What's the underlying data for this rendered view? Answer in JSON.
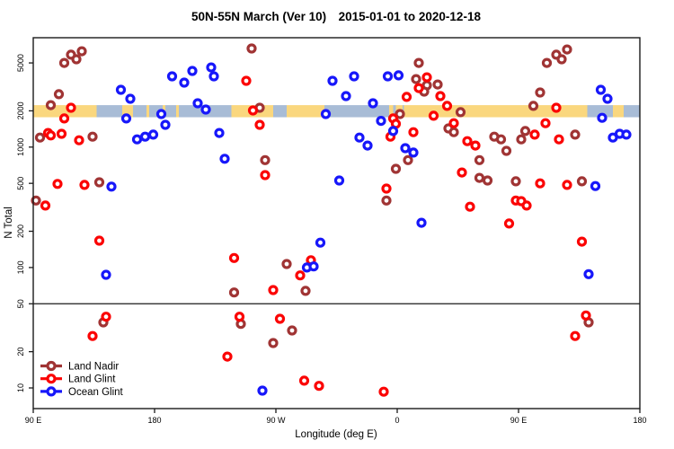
{
  "chart_data": {
    "type": "scatter",
    "title": "50N-55N March (Ver 10) 2015-01-01 to 2020-12-18",
    "xlabel": "Longitude (deg E)",
    "ylabel": "N Total",
    "x_axis": {
      "note": "longitude axis unwrapped eastward from 90E, degrees 0..450",
      "range_deg": [
        0,
        450
      ],
      "ticks": [
        {
          "deg": 0,
          "label": "90 E"
        },
        {
          "deg": 90,
          "label": "180"
        },
        {
          "deg": 180,
          "label": "90 W"
        },
        {
          "deg": 270,
          "label": "0"
        },
        {
          "deg": 360,
          "label": "90 E"
        },
        {
          "deg": 450,
          "label": "180"
        }
      ]
    },
    "y_axis": {
      "scale": "log",
      "range": [
        7,
        8000
      ],
      "ticks": [
        10,
        20,
        50,
        100,
        200,
        500,
        1000,
        2000,
        5000
      ]
    },
    "hline": 50,
    "frame_color": "#1a1a1a",
    "surface_band": {
      "top_n": 2230,
      "bottom_n": 1770,
      "land_color": "#FAD77E",
      "ocean_color": "#A8BCD6",
      "segments": [
        {
          "type": "land",
          "from": 0,
          "to": 47
        },
        {
          "type": "ocean",
          "from": 47,
          "to": 66
        },
        {
          "type": "land",
          "from": 66,
          "to": 74
        },
        {
          "type": "ocean",
          "from": 74,
          "to": 84
        },
        {
          "type": "land",
          "from": 84,
          "to": 86
        },
        {
          "type": "ocean",
          "from": 86,
          "to": 96
        },
        {
          "type": "land",
          "from": 96,
          "to": 98
        },
        {
          "type": "ocean",
          "from": 98,
          "to": 106
        },
        {
          "type": "land",
          "from": 106,
          "to": 108
        },
        {
          "type": "ocean",
          "from": 108,
          "to": 147
        },
        {
          "type": "land",
          "from": 147,
          "to": 178
        },
        {
          "type": "ocean",
          "from": 178,
          "to": 188
        },
        {
          "type": "land",
          "from": 188,
          "to": 216
        },
        {
          "type": "ocean",
          "from": 216,
          "to": 264
        },
        {
          "type": "land",
          "from": 264,
          "to": 267
        },
        {
          "type": "ocean",
          "from": 267,
          "to": 269
        },
        {
          "type": "land",
          "from": 269,
          "to": 274
        },
        {
          "type": "ocean",
          "from": 274,
          "to": 275
        },
        {
          "type": "land",
          "from": 275,
          "to": 411
        },
        {
          "type": "ocean",
          "from": 411,
          "to": 430
        },
        {
          "type": "land",
          "from": 430,
          "to": 438
        },
        {
          "type": "ocean",
          "from": 438,
          "to": 450
        }
      ]
    },
    "series": [
      {
        "name": "Land Nadir",
        "color": "#A03434",
        "points": [
          [
            23,
            5000
          ],
          [
            28,
            5850
          ],
          [
            36,
            6250
          ],
          [
            32,
            5360
          ],
          [
            19,
            2750
          ],
          [
            13,
            2230
          ],
          [
            162,
            6590
          ],
          [
            168,
            2120
          ],
          [
            5,
            1200
          ],
          [
            44,
            1220
          ],
          [
            49,
            510
          ],
          [
            2,
            360
          ],
          [
            172,
            780
          ],
          [
            188,
            107
          ],
          [
            202,
            64
          ],
          [
            149,
            62
          ],
          [
            52,
            35
          ],
          [
            178,
            23.6
          ],
          [
            192,
            30
          ],
          [
            154,
            34
          ],
          [
            286,
            5000
          ],
          [
            284,
            3670
          ],
          [
            292,
            3260
          ],
          [
            300,
            3310
          ],
          [
            290,
            2890
          ],
          [
            272,
            1880
          ],
          [
            317,
            1950
          ],
          [
            308,
            1430
          ],
          [
            312,
            1330
          ],
          [
            278,
            780
          ],
          [
            269,
            660
          ],
          [
            262,
            360
          ],
          [
            342,
            1220
          ],
          [
            347,
            1160
          ],
          [
            351,
            930
          ],
          [
            362,
            1160
          ],
          [
            365,
            1360
          ],
          [
            331,
            780
          ],
          [
            331,
            555
          ],
          [
            337,
            528
          ],
          [
            358,
            520
          ],
          [
            407,
            520
          ],
          [
            381,
            5000
          ],
          [
            388,
            5850
          ],
          [
            392,
            5360
          ],
          [
            396,
            6470
          ],
          [
            376,
            2840
          ],
          [
            371,
            2200
          ],
          [
            402,
            1270
          ],
          [
            412,
            35
          ]
        ]
      },
      {
        "name": "Land Glint",
        "color": "#FB0404",
        "points": [
          [
            28,
            2120
          ],
          [
            23,
            1730
          ],
          [
            11,
            1310
          ],
          [
            13,
            1250
          ],
          [
            21,
            1290
          ],
          [
            34,
            1140
          ],
          [
            158,
            3550
          ],
          [
            163,
            2015
          ],
          [
            168,
            1530
          ],
          [
            18,
            495
          ],
          [
            38,
            485
          ],
          [
            9,
            327
          ],
          [
            44,
            27
          ],
          [
            54,
            39
          ],
          [
            144,
            18.2
          ],
          [
            201,
            11.5
          ],
          [
            212,
            10.4
          ],
          [
            149,
            120
          ],
          [
            153,
            39
          ],
          [
            172,
            585
          ],
          [
            178,
            65
          ],
          [
            198,
            86
          ],
          [
            206,
            115
          ],
          [
            183,
            37.5
          ],
          [
            49,
            167
          ],
          [
            265,
            1220
          ],
          [
            292,
            3800
          ],
          [
            286,
            3090
          ],
          [
            302,
            2650
          ],
          [
            277,
            2610
          ],
          [
            307,
            2200
          ],
          [
            267,
            1730
          ],
          [
            269,
            1560
          ],
          [
            297,
            1820
          ],
          [
            312,
            1580
          ],
          [
            282,
            1330
          ],
          [
            262,
            452
          ],
          [
            322,
            1120
          ],
          [
            328,
            1030
          ],
          [
            318,
            615
          ],
          [
            376,
            500
          ],
          [
            396,
            485
          ],
          [
            358,
            360
          ],
          [
            362,
            356
          ],
          [
            366,
            327
          ],
          [
            324,
            320
          ],
          [
            353,
            232
          ],
          [
            407,
            164
          ],
          [
            410,
            40
          ],
          [
            388,
            2120
          ],
          [
            380,
            1580
          ],
          [
            390,
            1160
          ],
          [
            402,
            27
          ],
          [
            260,
            9.3
          ],
          [
            372,
            1270
          ]
        ]
      },
      {
        "name": "Ocean Glint",
        "color": "#1717FA",
        "points": [
          [
            65,
            2990
          ],
          [
            72,
            2520
          ],
          [
            69,
            1730
          ],
          [
            95,
            1880
          ],
          [
            98,
            1530
          ],
          [
            103,
            3870
          ],
          [
            112,
            3430
          ],
          [
            118,
            4290
          ],
          [
            132,
            4590
          ],
          [
            134,
            3870
          ],
          [
            122,
            2310
          ],
          [
            128,
            2050
          ],
          [
            138,
            1310
          ],
          [
            222,
            3550
          ],
          [
            232,
            2650
          ],
          [
            217,
            1880
          ],
          [
            77,
            1160
          ],
          [
            83,
            1220
          ],
          [
            89,
            1270
          ],
          [
            142,
            800
          ],
          [
            227,
            528
          ],
          [
            58,
            470
          ],
          [
            54,
            87
          ],
          [
            203,
            100
          ],
          [
            208,
            102
          ],
          [
            213,
            161
          ],
          [
            170,
            9.5
          ],
          [
            238,
            3870
          ],
          [
            263,
            3870
          ],
          [
            271,
            3940
          ],
          [
            252,
            2310
          ],
          [
            258,
            1650
          ],
          [
            267,
            1360
          ],
          [
            242,
            1200
          ],
          [
            248,
            1030
          ],
          [
            276,
            980
          ],
          [
            282,
            900
          ],
          [
            288,
            235
          ],
          [
            417,
            475
          ],
          [
            421,
            2990
          ],
          [
            426,
            2520
          ],
          [
            422,
            1750
          ],
          [
            430,
            1200
          ],
          [
            435,
            1290
          ],
          [
            440,
            1270
          ],
          [
            412,
            88
          ]
        ]
      }
    ],
    "legend": {
      "position": "bottom-left-inside"
    }
  }
}
